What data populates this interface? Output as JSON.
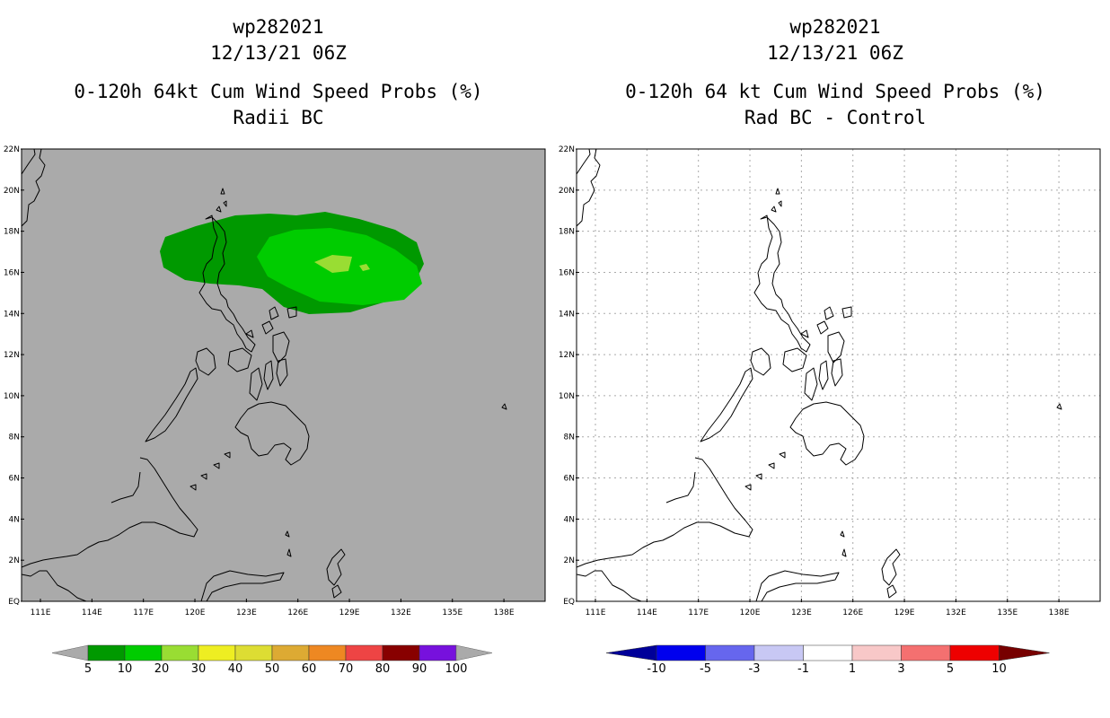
{
  "left_panel": {
    "storm_id": "wp282021",
    "datetime": "12/13/21 06Z",
    "product": "0-120h 64kt Cum Wind Speed Probs (%)",
    "variant": "Radii BC",
    "colorbar": {
      "labels": [
        "5",
        "10",
        "20",
        "30",
        "40",
        "50",
        "60",
        "70",
        "80",
        "90",
        "100"
      ],
      "colors": [
        "#009900",
        "#00cc00",
        "#99dd33",
        "#eeee22",
        "#dddd33",
        "#ddaa33",
        "#ee8822",
        "#ee4444",
        "#880000",
        "#7711dd"
      ]
    }
  },
  "right_panel": {
    "storm_id": "wp282021",
    "datetime": "12/13/21 06Z",
    "product": "0-120h 64 kt Cum Wind Speed Probs (%)",
    "variant": "Rad BC - Control",
    "colorbar": {
      "labels": [
        "-10",
        "-5",
        "-3",
        "-1",
        "1",
        "3",
        "5",
        "10"
      ],
      "colors": [
        "#0000ee",
        "#6666ee",
        "#c8c8f4",
        "#ffffff",
        "#f8c8c8",
        "#f47070",
        "#ee0000"
      ],
      "end_colors": [
        "#000099",
        "#770000"
      ]
    }
  },
  "axes": {
    "lat_labels": [
      "EQ",
      "2N",
      "4N",
      "6N",
      "8N",
      "10N",
      "12N",
      "14N",
      "16N",
      "18N",
      "20N",
      "22N"
    ],
    "lon_labels": [
      "111E",
      "114E",
      "117E",
      "120E",
      "123E",
      "126E",
      "129E",
      "132E",
      "135E",
      "138E"
    ]
  }
}
